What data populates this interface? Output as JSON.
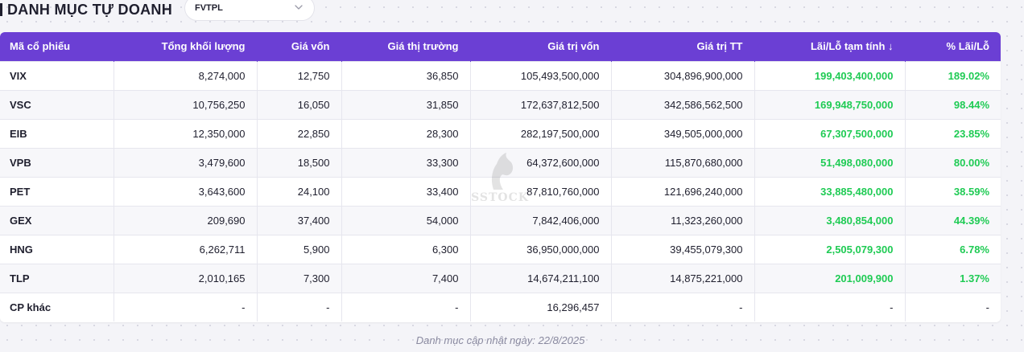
{
  "header": {
    "title": "DANH MỤC TỰ DOANH",
    "fund_select": {
      "value": "FVTPL",
      "icon": "chevron-down-icon"
    }
  },
  "table": {
    "columns": [
      "Mã cổ phiếu",
      "Tổng khối lượng",
      "Giá vốn",
      "Giá thị trường",
      "Giá trị vốn",
      "Giá trị TT",
      "Lãi/Lỗ tạm tính ↓",
      "% Lãi/Lỗ"
    ],
    "rows": [
      [
        "VIX",
        "8,274,000",
        "12,750",
        "36,850",
        "105,493,500,000",
        "304,896,900,000",
        "199,403,400,000",
        "189.02%"
      ],
      [
        "VSC",
        "10,756,250",
        "16,050",
        "31,850",
        "172,637,812,500",
        "342,586,562,500",
        "169,948,750,000",
        "98.44%"
      ],
      [
        "EIB",
        "12,350,000",
        "22,850",
        "28,300",
        "282,197,500,000",
        "349,505,000,000",
        "67,307,500,000",
        "23.85%"
      ],
      [
        "VPB",
        "3,479,600",
        "18,500",
        "33,300",
        "64,372,600,000",
        "115,870,680,000",
        "51,498,080,000",
        "80.00%"
      ],
      [
        "PET",
        "3,643,600",
        "24,100",
        "33,400",
        "87,810,760,000",
        "121,696,240,000",
        "33,885,480,000",
        "38.59%"
      ],
      [
        "GEX",
        "209,690",
        "37,400",
        "54,000",
        "7,842,406,000",
        "11,323,260,000",
        "3,480,854,000",
        "44.39%"
      ],
      [
        "HNG",
        "6,262,711",
        "5,900",
        "6,300",
        "36,950,000,000",
        "39,455,079,300",
        "2,505,079,300",
        "6.78%"
      ],
      [
        "TLP",
        "2,010,165",
        "7,300",
        "7,400",
        "14,674,211,100",
        "14,875,221,000",
        "201,009,900",
        "1.37%"
      ],
      [
        "CP khác",
        "-",
        "-",
        "-",
        "16,296,457",
        "-",
        "-",
        "-"
      ]
    ]
  },
  "watermark": {
    "text": "SSTOCK",
    "icon": "horse-head-icon"
  },
  "footer": {
    "note": "Danh mục cập nhật ngày: 22/8/2025"
  },
  "colors": {
    "header_bg": "#6b3fd4",
    "positive": "#1fcb54",
    "text": "#1f1f2e"
  }
}
